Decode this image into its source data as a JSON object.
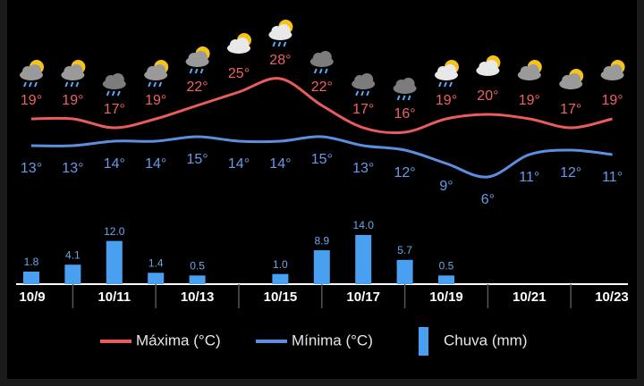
{
  "chart_data": {
    "type": "line",
    "categories": [
      "10/9",
      null,
      "10/11",
      null,
      "10/13",
      null,
      "10/15",
      null,
      "10/17",
      null,
      "10/19",
      null,
      "10/21",
      null,
      "10/23"
    ],
    "series": [
      {
        "name": "Máxima (°C)",
        "color": "#e85c5c",
        "values": [
          19,
          19,
          17,
          19,
          22,
          25,
          28,
          22,
          17,
          16,
          19,
          20,
          19,
          17,
          19
        ],
        "value_labels": [
          "19°",
          "19°",
          "17°",
          "19°",
          "22°",
          "25°",
          "28°",
          "22°",
          "17°",
          "16°",
          "19°",
          "20°",
          "19°",
          "17°",
          "19°"
        ]
      },
      {
        "name": "Mínima (°C)",
        "color": "#5b8fe0",
        "values": [
          13,
          13,
          14,
          14,
          15,
          14,
          14,
          15,
          13,
          12,
          9,
          6,
          11,
          12,
          11
        ],
        "value_labels": [
          "13°",
          "13°",
          "14°",
          "14°",
          "15°",
          "14°",
          "14°",
          "15°",
          "13°",
          "12°",
          "9°",
          "6°",
          "11°",
          "12°",
          "11°"
        ]
      },
      {
        "name": "Chuva (mm)",
        "color": "#4aa0f0",
        "type": "bar",
        "values": [
          1.8,
          4.1,
          12.0,
          1.4,
          0.5,
          null,
          1.0,
          8.9,
          14.0,
          5.7,
          0.5,
          null,
          null,
          null,
          null
        ],
        "value_labels": [
          "1.8",
          "4.1",
          "12.0",
          "1.4",
          "0.5",
          null,
          "1.0",
          "8.9",
          "14.0",
          "5.7",
          "0.5",
          null,
          null,
          null,
          null
        ]
      }
    ]
  }
}
